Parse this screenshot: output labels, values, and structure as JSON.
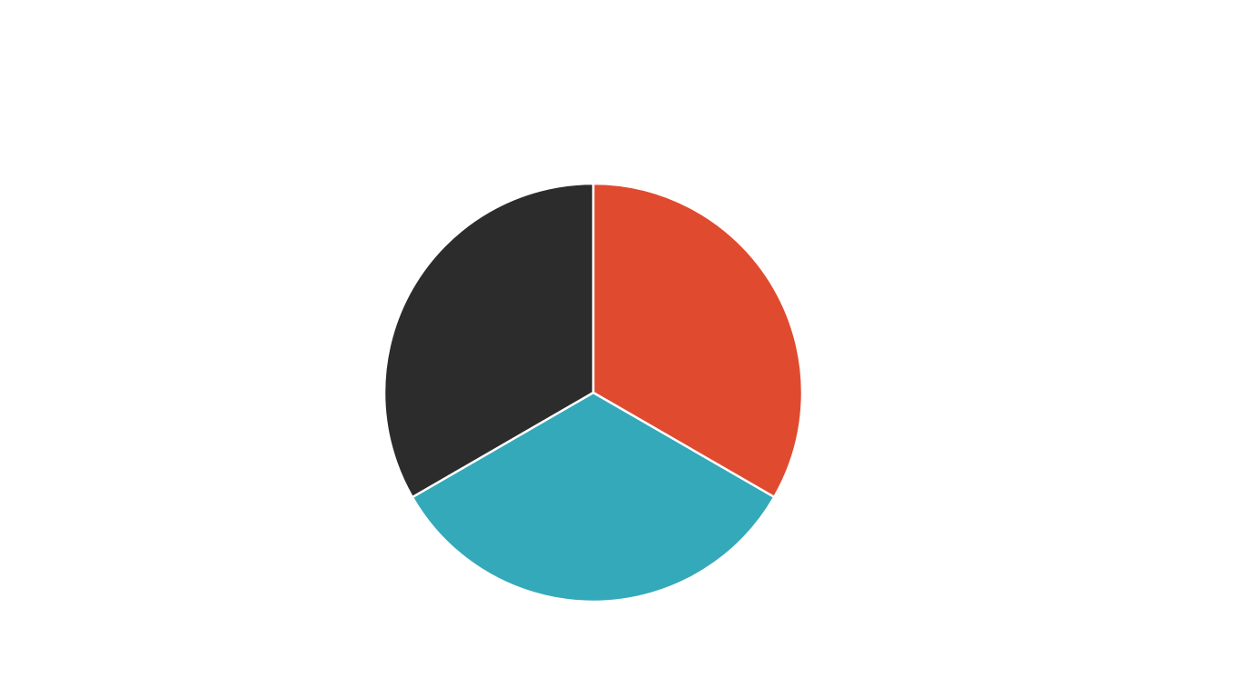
{
  "chart_data": {
    "type": "pie",
    "title": "",
    "categories": [
      "",
      "",
      ""
    ],
    "values": [
      33.33,
      33.33,
      33.34
    ],
    "colors": [
      "#e04a2f",
      "#33a9ba",
      "#2c2c2c"
    ],
    "start_angle_deg": 0,
    "direction": "clockwise",
    "legend": "none"
  }
}
